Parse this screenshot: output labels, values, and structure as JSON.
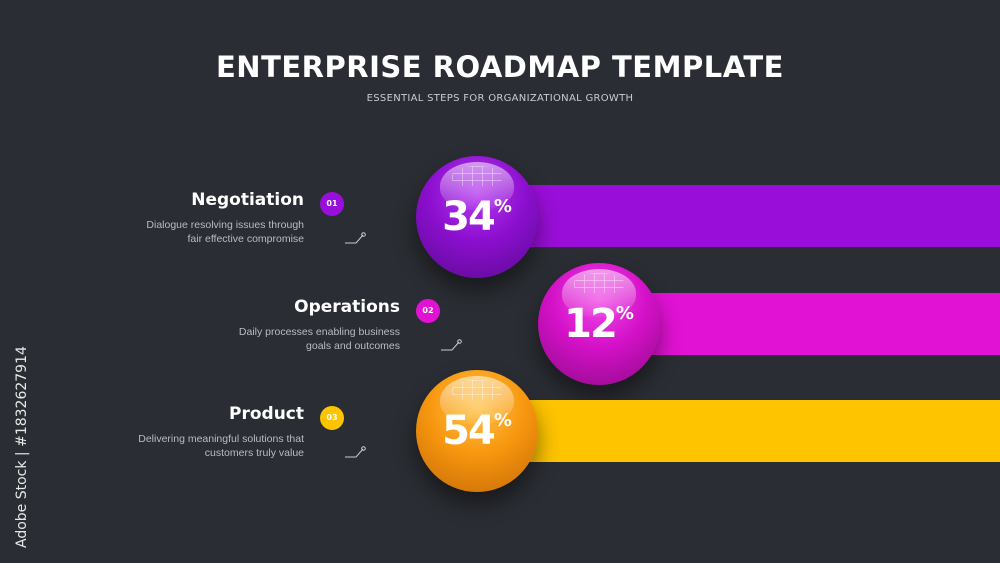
{
  "header": {
    "title": "ENTERPRISE ROADMAP TEMPLATE",
    "subtitle": "ESSENTIAL STEPS FOR ORGANIZATIONAL GROWTH"
  },
  "steps": [
    {
      "title": "Negotiation",
      "number": "01",
      "description_lines": [
        "Dialogue resolving issues through",
        "fair effective compromise"
      ],
      "percent": "34",
      "unit": "%",
      "color": "#9a0ed9"
    },
    {
      "title": "Operations",
      "number": "02",
      "description_lines": [
        "Daily processes enabling business",
        "goals and outcomes"
      ],
      "percent": "12",
      "unit": "%",
      "color": "#e112d4"
    },
    {
      "title": "Product",
      "number": "03",
      "description_lines": [
        "Delivering meaningful solutions that",
        "customers truly value"
      ],
      "percent": "54",
      "unit": "%",
      "color": "#fec400"
    }
  ],
  "credit": "Adobe Stock | #1832627914"
}
